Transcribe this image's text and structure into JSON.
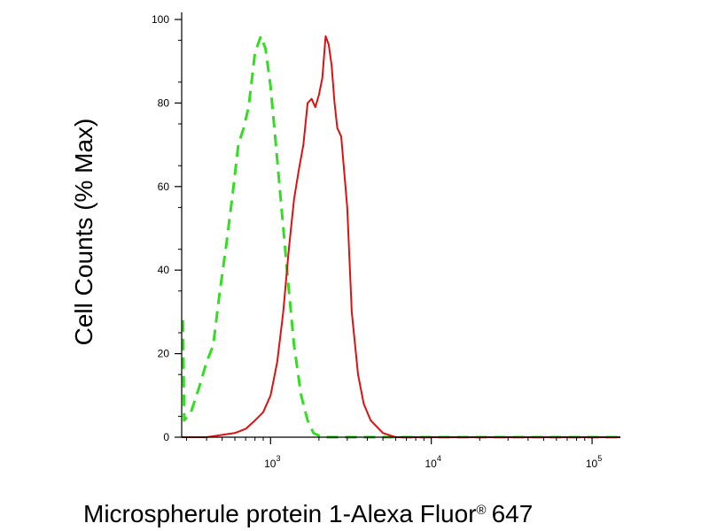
{
  "chart_data": {
    "type": "line",
    "xlabel": "Microspherule protein 1-Alexa Fluor",
    "xlabel_symbol": "®",
    "xlabel_suffix": "647",
    "ylabel": "Cell Counts (% Max)",
    "x_scale": "log",
    "xlim": [
      280,
      150000
    ],
    "ylim": [
      0,
      100
    ],
    "grid": false,
    "y_ticks": [
      0,
      20,
      40,
      60,
      80,
      100
    ],
    "y_tick_labels": [
      "0",
      "20",
      "40",
      "60",
      "80",
      "100"
    ],
    "x_ticks": [
      1000,
      10000,
      100000
    ],
    "x_tick_bases": [
      "10",
      "10",
      "10"
    ],
    "x_tick_exps": [
      "3",
      "4",
      "5"
    ],
    "series": [
      {
        "color": "#33dd22",
        "style": "dashed",
        "x": [
          285,
          290,
          320,
          360,
          400,
          440,
          480,
          530,
          580,
          630,
          680,
          730,
          800,
          870,
          930,
          1000,
          1080,
          1170,
          1280,
          1400,
          1550,
          1700,
          1850,
          2100,
          3000,
          5000,
          8000,
          150000
        ],
        "y": [
          28,
          4,
          6,
          12,
          18,
          22,
          34,
          46,
          58,
          70,
          74,
          79,
          92,
          96,
          93,
          84,
          70,
          55,
          38,
          22,
          10,
          4,
          1,
          0,
          0,
          0,
          0,
          0
        ]
      },
      {
        "color": "#dd1111",
        "style": "solid",
        "x": [
          280,
          400,
          600,
          700,
          800,
          900,
          1000,
          1100,
          1200,
          1300,
          1400,
          1500,
          1600,
          1700,
          1800,
          1900,
          2000,
          2100,
          2200,
          2300,
          2400,
          2500,
          2600,
          2750,
          3000,
          3200,
          3500,
          3800,
          4200,
          5000,
          6000,
          8000,
          150000
        ],
        "y": [
          0,
          0,
          1,
          2,
          4,
          6,
          10,
          18,
          30,
          45,
          57,
          64,
          70,
          80,
          81,
          79,
          82,
          86,
          96,
          94,
          89,
          80,
          74,
          72,
          55,
          30,
          15,
          8,
          4,
          1,
          0,
          0,
          0
        ]
      }
    ]
  }
}
